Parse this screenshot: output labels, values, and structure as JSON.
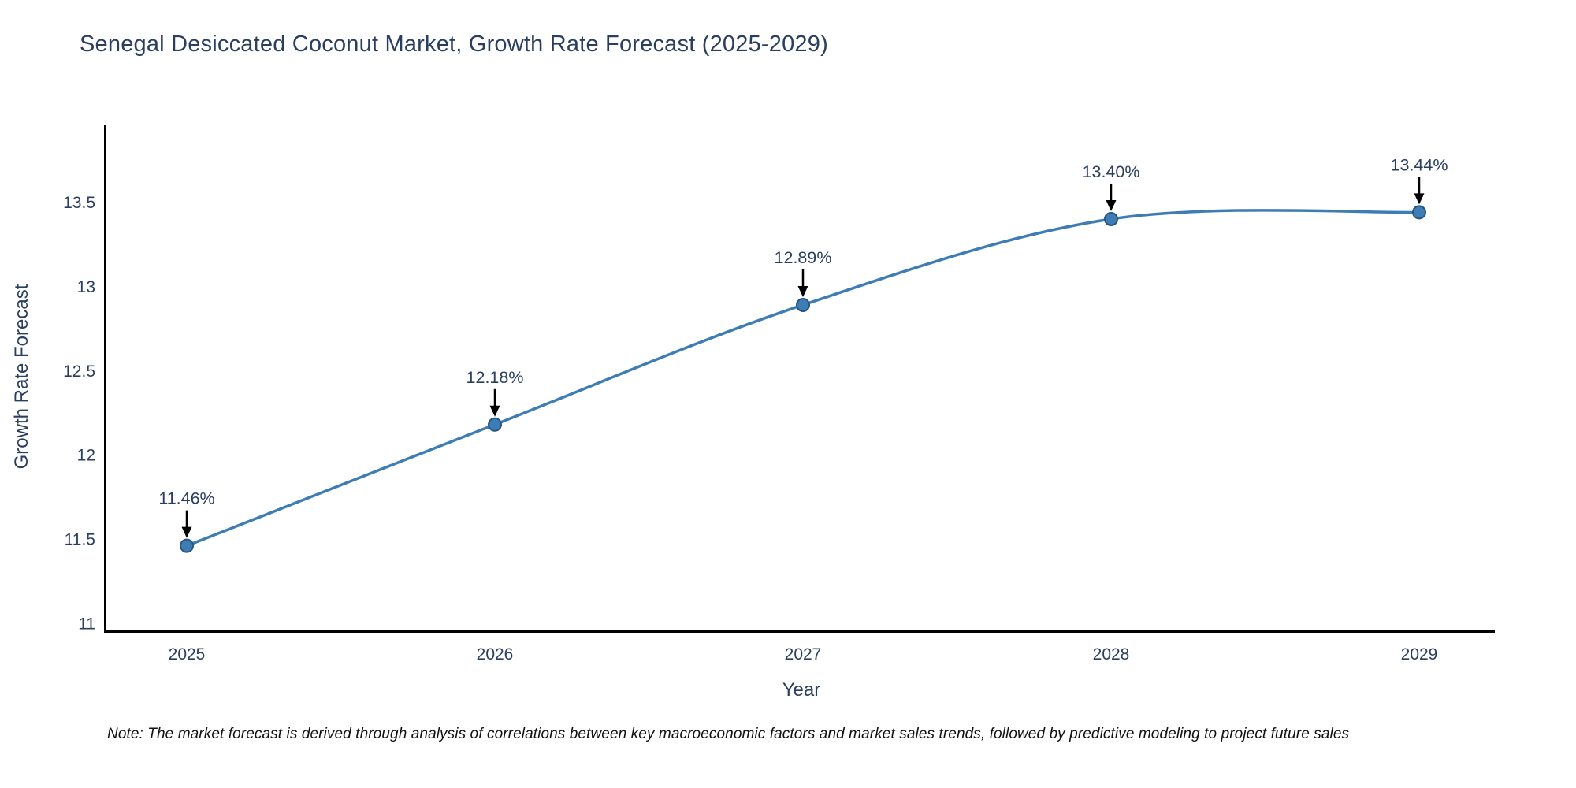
{
  "page": {
    "note": "Note: The market forecast is derived through analysis of correlations between key macroeconomic factors and market sales trends, followed by predictive modeling to project future sales"
  },
  "chart_data": {
    "type": "line",
    "line_shape": "spline",
    "title": "Senegal Desiccated Coconut Market, Growth Rate Forecast (2025-2029)",
    "xlabel": "Year",
    "ylabel": "Growth Rate Forecast",
    "x": [
      2025,
      2026,
      2027,
      2028,
      2029
    ],
    "series": [
      {
        "name": "Growth Rate Forecast",
        "values": [
          11.46,
          12.18,
          12.89,
          13.4,
          13.44
        ]
      }
    ],
    "point_labels": [
      "11.46%",
      "12.18%",
      "12.89%",
      "13.40%",
      "13.44%"
    ],
    "x_tick_labels": [
      "2025",
      "2026",
      "2027",
      "2028",
      "2029"
    ],
    "y_tick_labels": [
      "11",
      "11.5",
      "12",
      "12.5",
      "13",
      "13.5"
    ],
    "y_tick_values": [
      11,
      11.5,
      12,
      12.5,
      13,
      13.5
    ],
    "ylim": [
      10.95,
      13.97
    ],
    "xlim": [
      2024.73,
      2029.25
    ],
    "grid": false,
    "legend_position": "none",
    "colors": {
      "line": "#3e7cb5",
      "marker_fill": "#3e7cb5",
      "marker_edge": "#27567f",
      "axis_line": "#000000",
      "text": "#2a3f5f",
      "annotation_arrow": "#000000",
      "note_text": "#111111",
      "background": "#ffffff"
    }
  }
}
